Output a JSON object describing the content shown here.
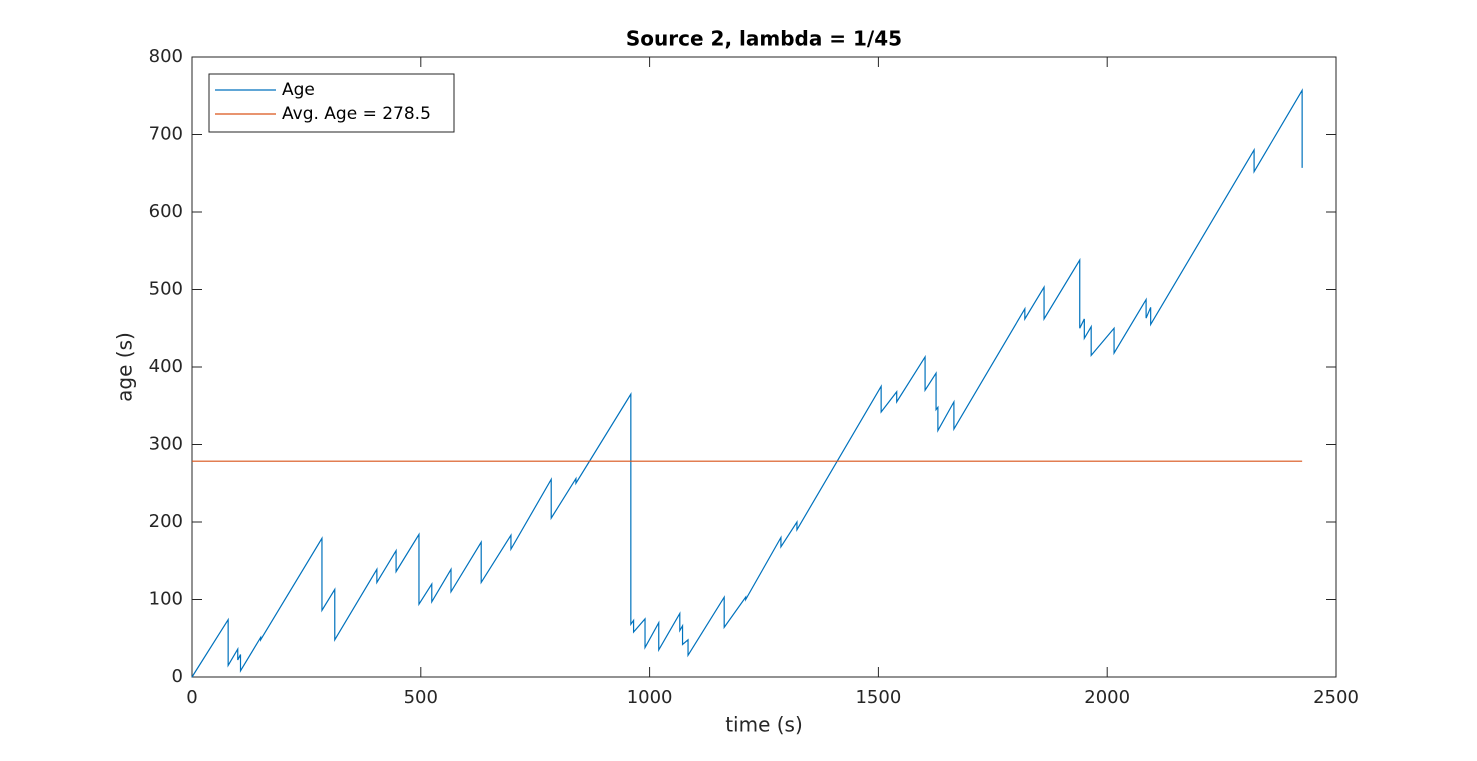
{
  "chart_data": {
    "type": "line",
    "title": "Source 2, lambda = 1/45",
    "xlabel": "time (s)",
    "ylabel": "age (s)",
    "xlim": [
      0,
      2500
    ],
    "xticks": [
      0,
      500,
      1000,
      1500,
      2000,
      2500
    ],
    "ylim": [
      0,
      800
    ],
    "yticks": [
      0,
      100,
      200,
      300,
      400,
      500,
      600,
      700,
      800
    ],
    "legend": "upper left",
    "series": [
      {
        "name": "Age",
        "color": "#0072bd",
        "x": [
          0,
          79,
          79,
          100,
          100,
          106,
          106,
          150,
          150,
          284,
          284,
          312,
          312,
          404,
          404,
          446,
          446,
          496,
          496,
          524,
          524,
          566,
          566,
          632,
          632,
          697,
          697,
          785,
          785,
          839,
          839,
          959,
          959,
          965,
          965,
          990,
          990,
          1020,
          1020,
          1066,
          1066,
          1072,
          1072,
          1084,
          1084,
          1163,
          1163,
          1210,
          1210,
          1287,
          1287,
          1322,
          1322,
          1506,
          1506,
          1540,
          1540,
          1602,
          1602,
          1626,
          1626,
          1630,
          1630,
          1665,
          1665,
          1820,
          1820,
          1862,
          1862,
          1940,
          1940,
          1950,
          1950,
          1965,
          1965,
          2015,
          2015,
          2085,
          2085,
          2095,
          2095,
          2321,
          2321,
          2426,
          2426
        ],
        "values": [
          0,
          74,
          15,
          36,
          22,
          29,
          8,
          51,
          48,
          179,
          86,
          113,
          48,
          139,
          122,
          163,
          136,
          184,
          94,
          120,
          97,
          139,
          110,
          174,
          122,
          183,
          165,
          255,
          205,
          256,
          250,
          365,
          68,
          73,
          58,
          75,
          38,
          70,
          35,
          82,
          60,
          66,
          42,
          48,
          28,
          103,
          64,
          103,
          100,
          180,
          168,
          200,
          190,
          375,
          342,
          368,
          355,
          413,
          370,
          392,
          345,
          348,
          318,
          355,
          320,
          475,
          462,
          503,
          462,
          538,
          450,
          462,
          437,
          452,
          415,
          450,
          418,
          487,
          463,
          477,
          455,
          680,
          652,
          757,
          657
        ]
      },
      {
        "name": "Avg. Age = 278.5",
        "color": "#d95319",
        "x": [
          0,
          2426
        ],
        "values": [
          278.5,
          278.5
        ]
      }
    ]
  }
}
